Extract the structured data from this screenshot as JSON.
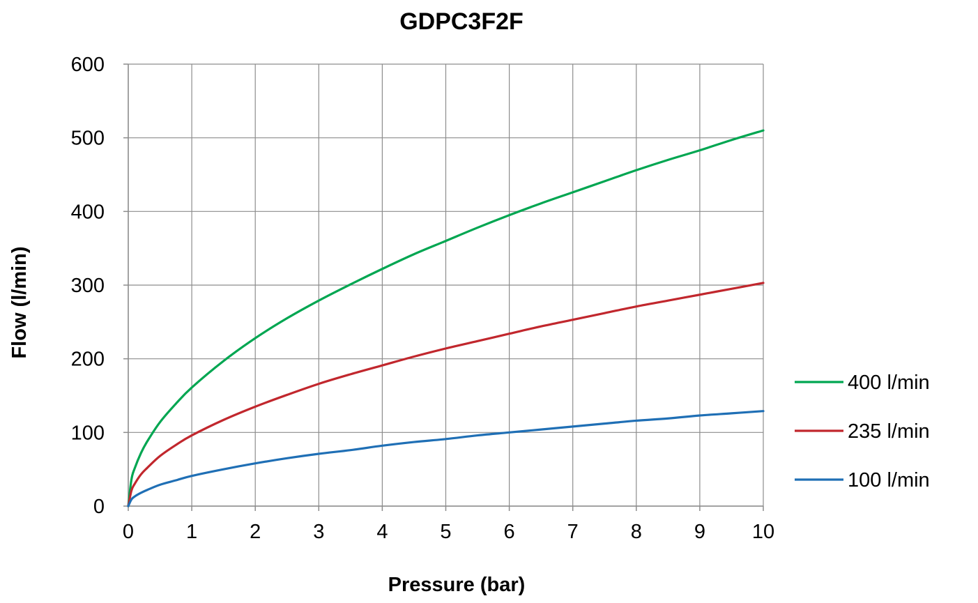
{
  "chart_data": {
    "type": "line",
    "title": "GDPC3F2F",
    "xlabel": "Pressure  (bar)",
    "ylabel": "Flow (l/min)",
    "xlim": [
      0,
      10
    ],
    "ylim": [
      0,
      600
    ],
    "x_ticks": [
      "0",
      "1",
      "2",
      "3",
      "4",
      "5",
      "6",
      "7",
      "8",
      "9",
      "10"
    ],
    "y_ticks": [
      "0",
      "100",
      "200",
      "300",
      "400",
      "500",
      "600"
    ],
    "grid": true,
    "legend_position": "right",
    "x": [
      0,
      0.05,
      0.1,
      0.2,
      0.3,
      0.5,
      0.75,
      1,
      1.5,
      2,
      2.5,
      3,
      3.5,
      4,
      4.5,
      5,
      5.5,
      6,
      6.5,
      7,
      7.5,
      8,
      8.5,
      9,
      9.5,
      10
    ],
    "series": [
      {
        "name": "400 l/min",
        "color": "#00a651",
        "values": [
          0,
          36,
          51,
          72,
          88,
          114,
          139,
          161,
          197,
          228,
          255,
          279,
          301,
          322,
          342,
          360,
          378,
          395,
          411,
          426,
          441,
          456,
          470,
          483,
          497,
          510
        ]
      },
      {
        "name": "235 l/min",
        "color": "#c1272d",
        "values": [
          0,
          21,
          30,
          43,
          52,
          68,
          83,
          96,
          117,
          135,
          151,
          166,
          179,
          191,
          203,
          214,
          224,
          234,
          244,
          253,
          262,
          271,
          279,
          287,
          295,
          303
        ]
      },
      {
        "name": "100 l/min",
        "color": "#1f6fb5",
        "values": [
          0,
          9,
          13,
          18,
          22,
          29,
          35,
          41,
          50,
          58,
          65,
          71,
          76,
          82,
          87,
          91,
          96,
          100,
          104,
          108,
          112,
          116,
          119,
          123,
          126,
          129
        ]
      }
    ]
  }
}
